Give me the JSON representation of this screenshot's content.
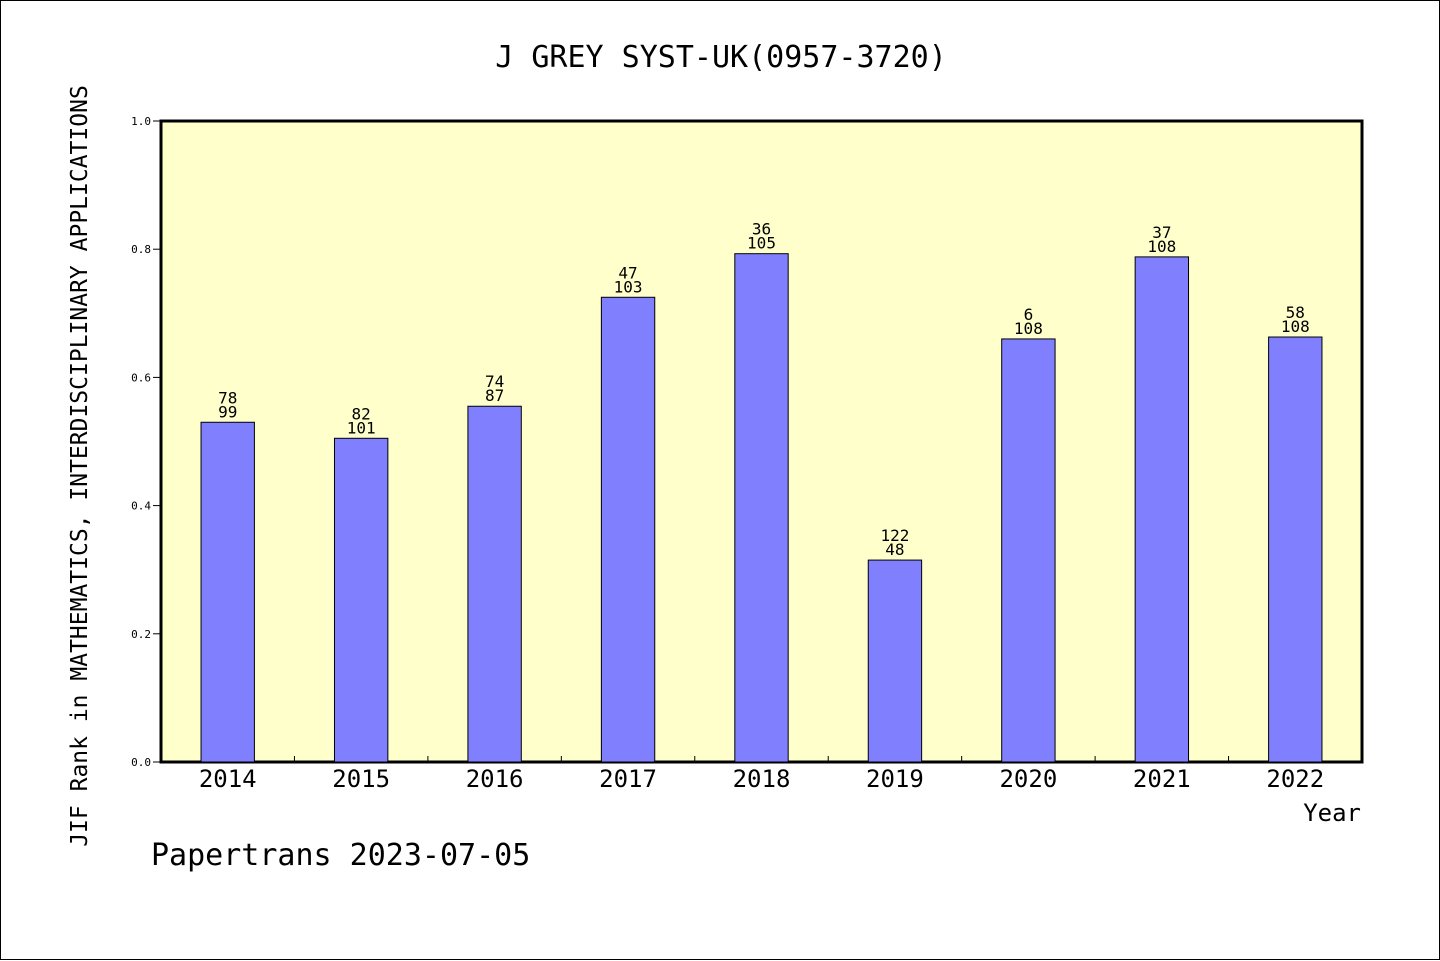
{
  "chart_data": {
    "type": "bar",
    "title": "J GREY SYST-UK(0957-3720)",
    "xlabel": "Year",
    "ylabel": "JIF Rank in MATHEMATICS,  INTERDISCIPLINARY APPLICATIONS",
    "footer": "Papertrans 2023-07-05",
    "ylim": [
      0,
      1.0
    ],
    "yticks": [
      "0.0",
      "0.2",
      "0.4",
      "0.6",
      "0.8",
      "1.0"
    ],
    "categories": [
      "2014",
      "2015",
      "2016",
      "2017",
      "2018",
      "2019",
      "2020",
      "2021",
      "2022"
    ],
    "values": [
      0.53,
      0.505,
      0.555,
      0.725,
      0.793,
      0.315,
      0.66,
      0.788,
      0.663
    ],
    "labels_top": [
      "78",
      "82",
      "74",
      "47",
      "36",
      "122",
      "6",
      "37",
      "58"
    ],
    "labels_bottom": [
      "99",
      "101",
      "87",
      "103",
      "105",
      "48",
      "108",
      "108",
      "108"
    ],
    "grid": false,
    "colors": {
      "plot_background": "#ffffcc",
      "bar_fill": "#8080ff",
      "bar_stroke": "#000000",
      "axis": "#000000"
    }
  }
}
